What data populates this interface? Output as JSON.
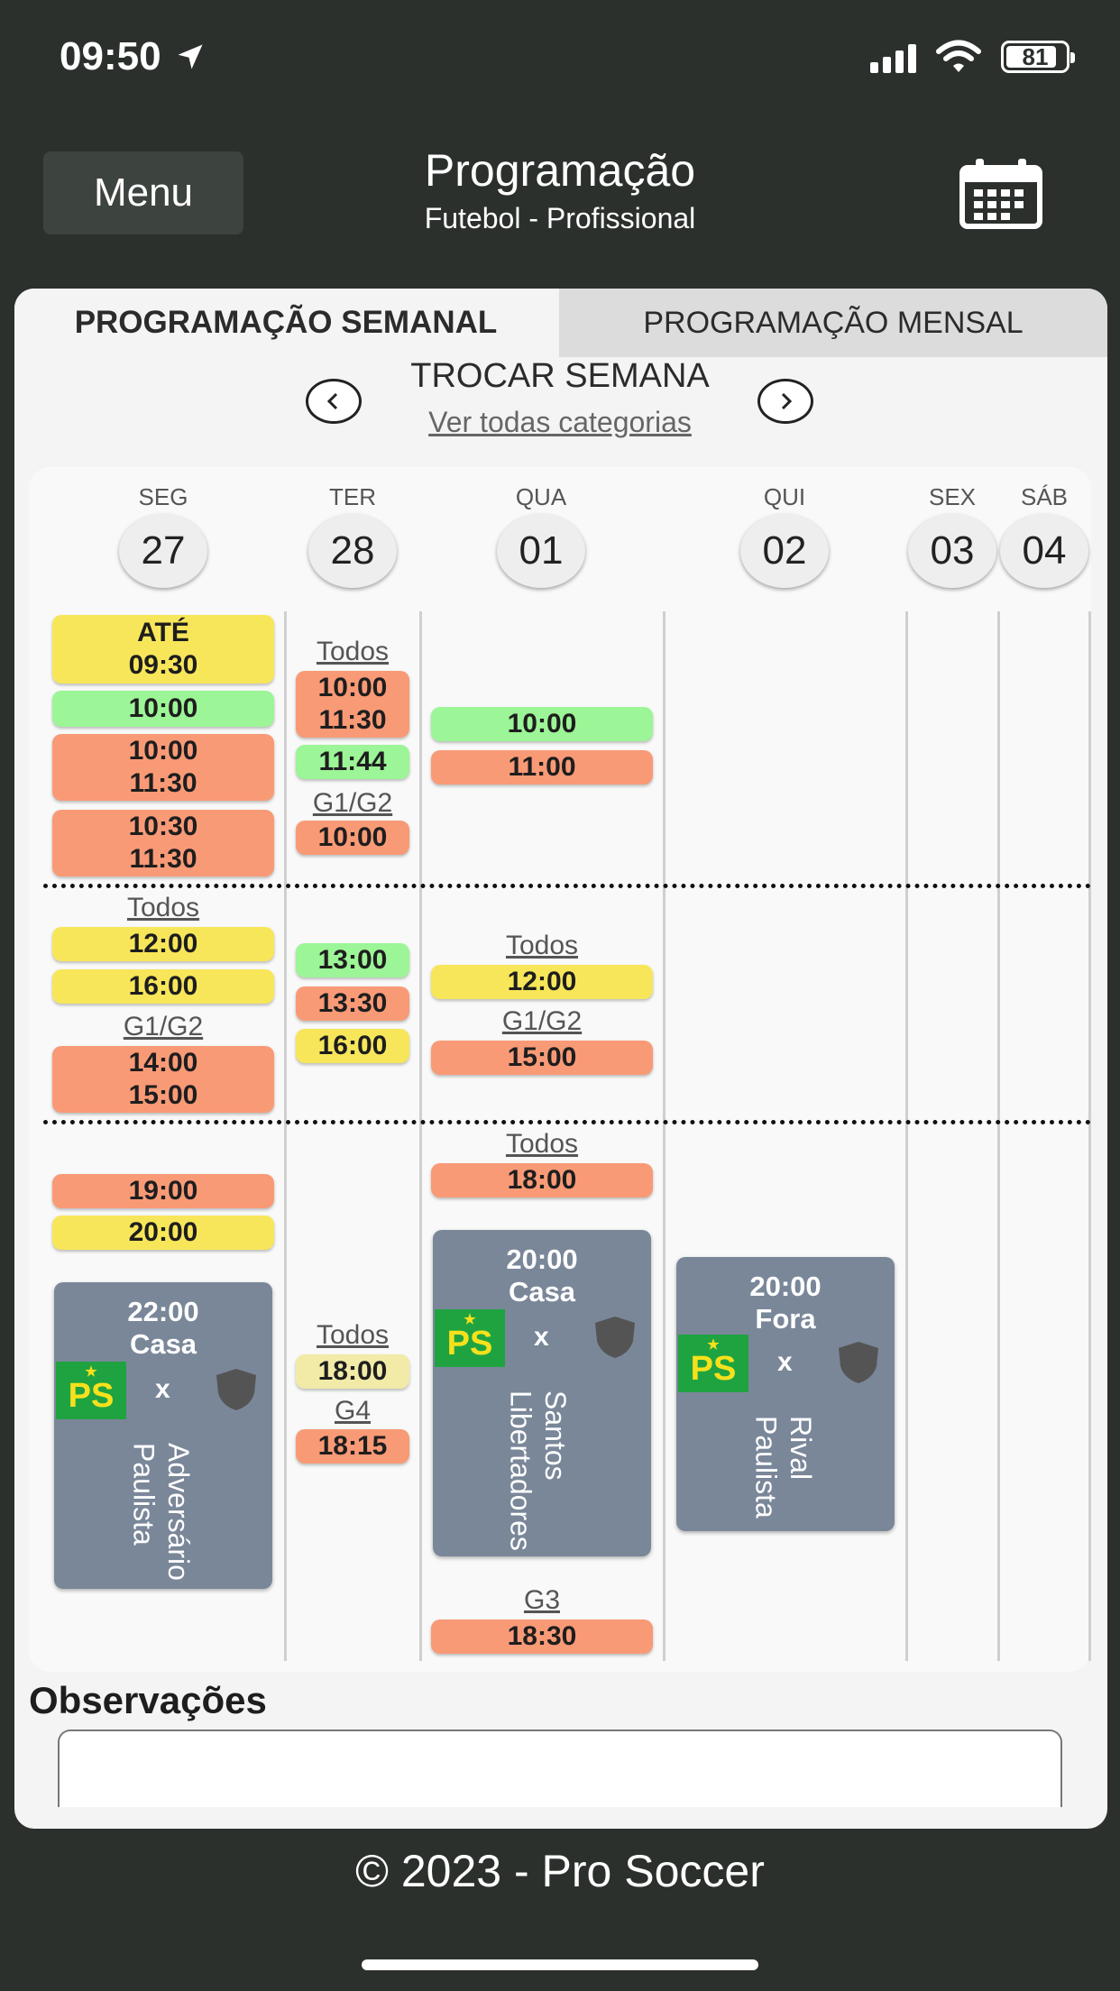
{
  "status_bar": {
    "time": "09:50",
    "battery": "81"
  },
  "header": {
    "menu_label": "Menu",
    "title": "Programação",
    "subtitle": "Futebol - Profissional"
  },
  "tabs": {
    "weekly": "PROGRAMAÇÃO SEMANAL",
    "monthly": "PROGRAMAÇÃO MENSAL"
  },
  "week_nav": {
    "title": "TROCAR SEMANA",
    "link": "Ver todas categorias"
  },
  "days": [
    {
      "dow": "SEG",
      "num": "27"
    },
    {
      "dow": "TER",
      "num": "28"
    },
    {
      "dow": "QUA",
      "num": "01"
    },
    {
      "dow": "QUI",
      "num": "02"
    },
    {
      "dow": "SEX",
      "num": "03"
    },
    {
      "dow": "SÁB",
      "num": "04"
    }
  ],
  "events": {
    "seg_until_label": "ATÉ",
    "seg_until_time": "09:30",
    "seg_1000": "10:00",
    "seg_1000b": "10:00",
    "seg_1130": "11:30",
    "seg_1030": "10:30",
    "seg_1130b": "11:30",
    "seg_grp_todos": "Todos",
    "seg_1200": "12:00",
    "seg_1600": "16:00",
    "seg_grp_g1g2": "G1/G2",
    "seg_1400": "14:00",
    "seg_1500": "15:00",
    "seg_1900": "19:00",
    "seg_2000": "20:00",
    "ter_grp_todos": "Todos",
    "ter_1000": "10:00",
    "ter_1130": "11:30",
    "ter_1144": "11:44",
    "ter_grp_g1g2": "G1/G2",
    "ter_1000b": "10:00",
    "ter_1300": "13:00",
    "ter_1330": "13:30",
    "ter_1600": "16:00",
    "ter_grp_todos2": "Todos",
    "ter_1800": "18:00",
    "ter_grp_g4": "G4",
    "ter_1815": "18:15",
    "qua_1000": "10:00",
    "qua_1100": "11:00",
    "qua_grp_todos": "Todos",
    "qua_1200": "12:00",
    "qua_grp_g1g2": "G1/G2",
    "qua_1500": "15:00",
    "qua_grp_todos2": "Todos",
    "qua_1800": "18:00",
    "qua_grp_g3": "G3",
    "qua_1830": "18:30"
  },
  "matches": {
    "seg": {
      "time": "22:00",
      "venue": "Casa",
      "badge": "PS",
      "vs": "x",
      "opponent": "Adversário Paulista"
    },
    "qua": {
      "time": "20:00",
      "venue": "Casa",
      "badge": "PS",
      "vs": "x",
      "opponent": "Santos Libertadores"
    },
    "qui": {
      "time": "20:00",
      "venue": "Fora",
      "badge": "PS",
      "vs": "x",
      "opponent": "Rival Paulista"
    }
  },
  "observations": {
    "title": "Observações"
  },
  "footer": {
    "text": "© 2023 - Pro Soccer"
  },
  "colors": {
    "yellow": "#f8e65a",
    "green": "#9cf596",
    "orange": "#f99a76",
    "match_card": "#7a8799",
    "badge_green": "#1fa341",
    "header_bg": "#2b302d"
  },
  "icons": [
    "location-arrow-icon",
    "signal-icon",
    "wifi-icon",
    "battery-icon",
    "calendar-icon",
    "chevron-left-icon",
    "chevron-right-icon",
    "shield-icon"
  ]
}
